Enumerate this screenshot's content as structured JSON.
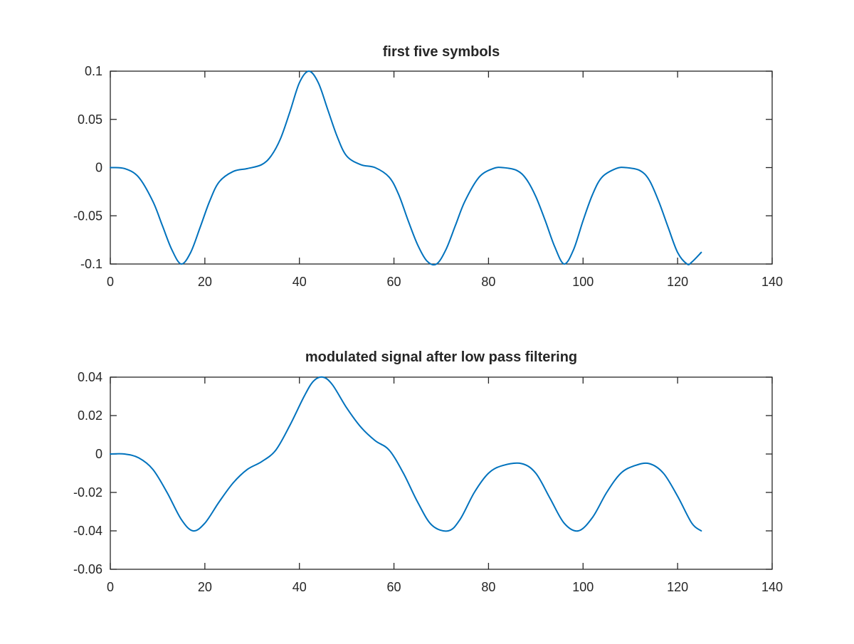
{
  "figure": {
    "background": "#ffffff",
    "axis_color": "#262626",
    "line_color": "#0072bd"
  },
  "chart_data": [
    {
      "type": "line",
      "title": "first five symbols",
      "xlabel": "",
      "ylabel": "",
      "xlim": [
        0,
        140
      ],
      "ylim": [
        -0.1,
        0.1
      ],
      "xticks": [
        0,
        20,
        40,
        60,
        80,
        100,
        120,
        140
      ],
      "xtick_labels": [
        "0",
        "20",
        "40",
        "60",
        "80",
        "100",
        "120",
        "140"
      ],
      "yticks": [
        -0.1,
        -0.05,
        0,
        0.05,
        0.1
      ],
      "ytick_labels": [
        "-0.1",
        "-0.05",
        "0",
        "0.05",
        "0.1"
      ],
      "grid": false,
      "legend": "none",
      "series": [
        {
          "color": "#0072bd",
          "x": [
            0,
            3,
            6,
            9,
            11,
            13,
            15,
            17,
            19,
            21,
            23,
            26,
            29,
            32,
            34,
            36,
            38,
            40,
            42,
            44,
            46,
            48,
            50,
            53,
            56,
            59,
            61,
            63,
            65,
            67,
            69,
            71,
            73,
            75,
            78,
            81,
            83,
            86,
            88,
            90,
            92,
            94,
            96,
            98,
            100,
            102,
            104,
            107,
            109,
            112,
            114,
            116,
            118,
            120,
            122,
            123,
            125
          ],
          "y": [
            0,
            -0.001,
            -0.01,
            -0.035,
            -0.06,
            -0.085,
            -0.1,
            -0.088,
            -0.062,
            -0.035,
            -0.015,
            -0.004,
            -0.001,
            0.003,
            0.012,
            0.03,
            0.058,
            0.088,
            0.1,
            0.088,
            0.06,
            0.032,
            0.012,
            0.003,
            0,
            -0.01,
            -0.028,
            -0.055,
            -0.08,
            -0.097,
            -0.1,
            -0.085,
            -0.06,
            -0.035,
            -0.01,
            -0.001,
            0,
            -0.003,
            -0.012,
            -0.03,
            -0.055,
            -0.082,
            -0.1,
            -0.085,
            -0.055,
            -0.028,
            -0.01,
            -0.001,
            0,
            -0.003,
            -0.013,
            -0.035,
            -0.062,
            -0.088,
            -0.1,
            -0.098,
            -0.088
          ]
        }
      ]
    },
    {
      "type": "line",
      "title": "modulated signal after low pass filtering",
      "xlabel": "",
      "ylabel": "",
      "xlim": [
        0,
        140
      ],
      "ylim": [
        -0.06,
        0.04
      ],
      "xticks": [
        0,
        20,
        40,
        60,
        80,
        100,
        120,
        140
      ],
      "xtick_labels": [
        "0",
        "20",
        "40",
        "60",
        "80",
        "100",
        "120",
        "140"
      ],
      "yticks": [
        -0.06,
        -0.04,
        -0.02,
        0,
        0.02,
        0.04
      ],
      "ytick_labels": [
        "-0.06",
        "-0.04",
        "-0.02",
        "0",
        "0.02",
        "0.04"
      ],
      "grid": false,
      "legend": "none",
      "series": [
        {
          "color": "#0072bd",
          "x": [
            0,
            3,
            6,
            9,
            12,
            15,
            17.5,
            20,
            23,
            26,
            29,
            32,
            35,
            38,
            41,
            43,
            45,
            47,
            50,
            53,
            56,
            59,
            62,
            65,
            68,
            71.5,
            74,
            77,
            80,
            83,
            87,
            90,
            93,
            96,
            99,
            102,
            105,
            108,
            111,
            114,
            117,
            120,
            123,
            125
          ],
          "y": [
            0,
            0,
            -0.002,
            -0.008,
            -0.02,
            -0.034,
            -0.04,
            -0.036,
            -0.025,
            -0.015,
            -0.008,
            -0.004,
            0.002,
            0.015,
            0.03,
            0.038,
            0.04,
            0.036,
            0.024,
            0.014,
            0.007,
            0.002,
            -0.01,
            -0.025,
            -0.037,
            -0.04,
            -0.034,
            -0.02,
            -0.01,
            -0.006,
            -0.005,
            -0.01,
            -0.023,
            -0.036,
            -0.04,
            -0.033,
            -0.02,
            -0.01,
            -0.006,
            -0.005,
            -0.01,
            -0.022,
            -0.036,
            -0.04
          ]
        }
      ]
    }
  ]
}
